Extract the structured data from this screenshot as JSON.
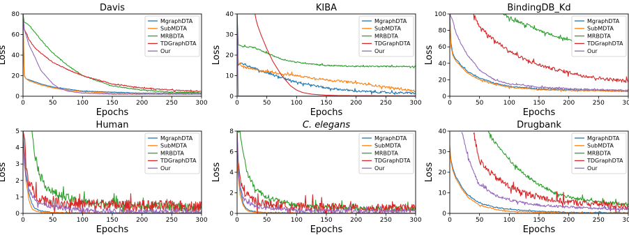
{
  "chart_data": [
    {
      "type": "line",
      "title": "Davis",
      "xlabel": "Epochs",
      "ylabel": "Loss",
      "xlim": [
        0,
        300
      ],
      "ylim": [
        0,
        80
      ],
      "xticks": [
        0,
        50,
        100,
        150,
        200,
        250,
        300
      ],
      "yticks": [
        0,
        20,
        40,
        60,
        80
      ],
      "legend_position": "top-right",
      "series": [
        {
          "name": "MgraphDTA",
          "x": [
            0,
            2,
            5,
            10,
            20,
            30,
            50,
            75,
            100,
            150,
            200,
            250,
            300
          ],
          "values": [
            80,
            20,
            17,
            16,
            14,
            12,
            9,
            7,
            5,
            4,
            3,
            3,
            3
          ],
          "noise": 0.2
        },
        {
          "name": "SubMDTA",
          "x": [
            0,
            2,
            5,
            10,
            20,
            30,
            50,
            75,
            100,
            150,
            200,
            250,
            300
          ],
          "values": [
            80,
            20,
            17,
            15,
            13,
            11,
            8,
            6,
            4.5,
            3,
            2,
            2,
            2
          ],
          "noise": 0.2
        },
        {
          "name": "MRBDTA",
          "x": [
            0,
            2,
            5,
            10,
            20,
            30,
            50,
            75,
            100,
            150,
            200,
            250,
            300
          ],
          "values": [
            80,
            72,
            71,
            69,
            62,
            55,
            42,
            30,
            20,
            10,
            6,
            4,
            3.5
          ],
          "noise": 0.4
        },
        {
          "name": "TDGraphDTA",
          "x": [
            0,
            2,
            5,
            10,
            20,
            30,
            50,
            75,
            100,
            150,
            200,
            250,
            300
          ],
          "values": [
            80,
            65,
            62,
            55,
            47,
            42,
            33,
            26,
            20,
            12,
            8,
            6,
            4.5
          ],
          "noise": 0.4
        },
        {
          "name": "Our",
          "x": [
            0,
            2,
            5,
            10,
            20,
            30,
            50,
            60,
            75,
            100,
            150,
            200,
            300
          ],
          "values": [
            80,
            65,
            60,
            50,
            38,
            25,
            12,
            8,
            5,
            3,
            2,
            2,
            2
          ],
          "noise": 0.2
        }
      ]
    },
    {
      "type": "line",
      "title": "KIBA",
      "xlabel": "Epochs",
      "ylabel": "Loss",
      "xlim": [
        0,
        300
      ],
      "ylim": [
        0,
        40
      ],
      "xticks": [
        0,
        50,
        100,
        150,
        200,
        250,
        300
      ],
      "yticks": [
        0,
        10,
        20,
        30,
        40
      ],
      "legend_position": "top-right",
      "series": [
        {
          "name": "MgraphDTA",
          "x": [
            0,
            2,
            5,
            10,
            20,
            30,
            50,
            75,
            100,
            150,
            200,
            250,
            300
          ],
          "values": [
            40,
            15,
            16,
            15.5,
            14.5,
            13.5,
            11.5,
            9,
            7,
            4,
            2.5,
            1.8,
            1.5
          ],
          "noise": 0.5
        },
        {
          "name": "SubMDTA",
          "x": [
            0,
            2,
            5,
            10,
            20,
            30,
            50,
            75,
            100,
            150,
            200,
            250,
            300
          ],
          "values": [
            40,
            16,
            15,
            14.5,
            13.5,
            13,
            12,
            11,
            10,
            8,
            6.5,
            4.5,
            2.5
          ],
          "noise": 0.5
        },
        {
          "name": "MRBDTA",
          "x": [
            0,
            2,
            5,
            10,
            20,
            30,
            50,
            75,
            100,
            150,
            200,
            250,
            300
          ],
          "values": [
            40,
            25,
            24.5,
            24,
            24,
            23.5,
            21,
            18,
            16.5,
            15,
            14.5,
            14.5,
            14.5
          ],
          "noise": 0.3
        },
        {
          "name": "TDGraphDTA",
          "x": [
            30,
            32,
            35,
            40,
            50,
            60,
            75,
            90,
            100,
            110,
            125,
            150,
            175,
            300
          ],
          "values": [
            40,
            37,
            34,
            30,
            23,
            17,
            10,
            5,
            3,
            1.8,
            1,
            0.5,
            0.3,
            0.2
          ],
          "noise": 0
        },
        {
          "name": "Our",
          "x": [
            0,
            1,
            2,
            300
          ],
          "values": [
            40,
            15,
            0.1,
            0.05
          ],
          "noise": 0
        }
      ]
    },
    {
      "type": "line",
      "title": "BindingDB_Kd",
      "xlabel": "Epochs",
      "ylabel": "Loss",
      "xlim": [
        0,
        300
      ],
      "ylim": [
        0,
        100
      ],
      "xticks": [
        0,
        50,
        100,
        150,
        200,
        250,
        300
      ],
      "yticks": [
        0,
        20,
        40,
        60,
        80,
        100
      ],
      "legend_position": "top-right",
      "series": [
        {
          "name": "MgraphDTA",
          "x": [
            0,
            2,
            5,
            10,
            20,
            30,
            50,
            75,
            100,
            150,
            200,
            250,
            300
          ],
          "values": [
            100,
            65,
            52,
            45,
            37,
            30,
            22,
            16,
            12,
            9,
            8,
            7,
            6
          ],
          "noise": 0.6
        },
        {
          "name": "SubMDTA",
          "x": [
            0,
            2,
            5,
            10,
            20,
            30,
            50,
            75,
            100,
            150,
            200,
            250,
            300
          ],
          "values": [
            100,
            60,
            50,
            43,
            35,
            28,
            20,
            15,
            11,
            8,
            7,
            6.5,
            6
          ],
          "noise": 0.6
        },
        {
          "name": "MRBDTA",
          "x": [
            90,
            100,
            125,
            150,
            175,
            200,
            210
          ],
          "values": [
            100,
            95,
            88,
            80,
            74,
            68,
            66
          ],
          "noise": 1.5
        },
        {
          "name": "TDGraphDTA",
          "x": [
            40,
            45,
            50,
            75,
            100,
            125,
            150,
            175,
            200,
            225,
            250,
            275,
            300
          ],
          "values": [
            100,
            92,
            85,
            68,
            55,
            45,
            38,
            33,
            29,
            25,
            22,
            20,
            18
          ],
          "noise": 2
        },
        {
          "name": "Our",
          "x": [
            0,
            5,
            10,
            20,
            30,
            50,
            75,
            100,
            150,
            200,
            250,
            300
          ],
          "values": [
            100,
            92,
            78,
            62,
            50,
            32,
            20,
            15,
            11,
            9,
            8,
            7
          ],
          "noise": 0.8
        }
      ]
    },
    {
      "type": "line",
      "title": "Human",
      "xlabel": "Epochs",
      "ylabel": "Loss",
      "xlim": [
        0,
        300
      ],
      "ylim": [
        0,
        5
      ],
      "xticks": [
        0,
        50,
        100,
        150,
        200,
        250,
        300
      ],
      "yticks": [
        0,
        1,
        2,
        3,
        4,
        5
      ],
      "legend_position": "top-right",
      "series": [
        {
          "name": "MgraphDTA",
          "x": [
            0,
            2,
            5,
            10,
            15,
            20,
            30,
            40,
            50,
            75,
            100,
            150,
            300
          ],
          "values": [
            5,
            4,
            2.5,
            1.2,
            0.6,
            0.3,
            0.15,
            0.1,
            0.05,
            0.03,
            0.02,
            0.02,
            0.02
          ],
          "noise": 0.03
        },
        {
          "name": "SubMDTA",
          "x": [
            0,
            2,
            5,
            10,
            15,
            20,
            30,
            50,
            100,
            150,
            200,
            300
          ],
          "values": [
            5,
            3.5,
            2,
            0.8,
            0.3,
            0.15,
            0.08,
            0.05,
            0.03,
            0.02,
            0.02,
            0.02
          ],
          "noise": 0.02
        },
        {
          "name": "MRBDTA",
          "x": [
            15,
            18,
            20,
            25,
            30,
            40,
            50,
            75,
            100,
            150,
            200,
            250,
            300
          ],
          "values": [
            5,
            4.2,
            3.6,
            2.8,
            2.2,
            1.6,
            1.3,
            0.9,
            0.7,
            0.55,
            0.45,
            0.4,
            0.35
          ],
          "noise": 0.25
        },
        {
          "name": "TDGraphDTA",
          "x": [
            0,
            3,
            5,
            10,
            20,
            30,
            50,
            75,
            100,
            150,
            200,
            250,
            300
          ],
          "values": [
            5,
            4.5,
            3,
            1.8,
            1.2,
            0.9,
            0.7,
            0.6,
            0.55,
            0.5,
            0.45,
            0.45,
            0.4
          ],
          "noise": 0.35
        },
        {
          "name": "Our",
          "x": [
            0,
            2,
            5,
            10,
            20,
            30,
            50,
            75,
            100,
            150,
            200,
            250,
            300
          ],
          "values": [
            5,
            3,
            2.2,
            1.4,
            0.9,
            0.6,
            0.4,
            0.3,
            0.2,
            0.15,
            0.1,
            0.1,
            0.1
          ],
          "noise": 0.15
        }
      ]
    },
    {
      "type": "line",
      "title": "C. elegans",
      "title_italic": true,
      "xlabel": "Epochs",
      "ylabel": "Loss",
      "xlim": [
        0,
        300
      ],
      "ylim": [
        0,
        8
      ],
      "xticks": [
        0,
        50,
        100,
        150,
        200,
        250,
        300
      ],
      "yticks": [
        0,
        2,
        4,
        6,
        8
      ],
      "legend_position": "top-right",
      "series": [
        {
          "name": "MgraphDTA",
          "x": [
            0,
            2,
            5,
            10,
            15,
            20,
            30,
            50,
            100,
            150,
            200,
            300
          ],
          "values": [
            6,
            4.5,
            2.5,
            1,
            0.5,
            0.3,
            0.15,
            0.08,
            0.05,
            0.04,
            0.03,
            0.03
          ],
          "noise": 0.03
        },
        {
          "name": "SubMDTA",
          "x": [
            0,
            2,
            5,
            10,
            15,
            20,
            30,
            50,
            100,
            150,
            200,
            300
          ],
          "values": [
            5,
            3.5,
            1.8,
            0.8,
            0.4,
            0.2,
            0.1,
            0.06,
            0.04,
            0.03,
            0.03,
            0.03
          ],
          "noise": 0.02
        },
        {
          "name": "MRBDTA",
          "x": [
            0,
            5,
            10,
            15,
            20,
            30,
            40,
            50,
            75,
            100,
            150,
            200,
            250,
            300
          ],
          "values": [
            8,
            7.8,
            6,
            4.5,
            3.5,
            2.5,
            2,
            1.6,
            1.1,
            0.8,
            0.6,
            0.5,
            0.45,
            0.4
          ],
          "noise": 0.25
        },
        {
          "name": "TDGraphDTA",
          "x": [
            0,
            2,
            5,
            10,
            20,
            30,
            50,
            75,
            100,
            150,
            200,
            250,
            300
          ],
          "values": [
            8,
            5,
            3.5,
            2.2,
            1.6,
            1.2,
            0.9,
            0.75,
            0.65,
            0.6,
            0.55,
            0.5,
            0.5
          ],
          "noise": 0.4
        },
        {
          "name": "Our",
          "x": [
            0,
            2,
            5,
            10,
            20,
            30,
            50,
            75,
            100,
            150,
            200,
            250,
            300
          ],
          "values": [
            8,
            4,
            2.5,
            1.5,
            1,
            0.7,
            0.5,
            0.4,
            0.3,
            0.25,
            0.2,
            0.2,
            0.2
          ],
          "noise": 0.2
        }
      ]
    },
    {
      "type": "line",
      "title": "Drugbank",
      "xlabel": "Epochs",
      "ylabel": "Loss",
      "xlim": [
        0,
        300
      ],
      "ylim": [
        0,
        40
      ],
      "xticks": [
        0,
        50,
        100,
        150,
        200,
        250,
        300
      ],
      "yticks": [
        0,
        10,
        20,
        30,
        40
      ],
      "legend_position": "top-right",
      "series": [
        {
          "name": "MgraphDTA",
          "x": [
            0,
            2,
            5,
            10,
            20,
            30,
            50,
            75,
            100,
            150,
            200,
            300
          ],
          "values": [
            30,
            26,
            22,
            18,
            13,
            9,
            5,
            3,
            2,
            1,
            0.5,
            0.3
          ],
          "noise": 0.2
        },
        {
          "name": "SubMDTA",
          "x": [
            0,
            2,
            5,
            10,
            20,
            30,
            50,
            75,
            100,
            150,
            200,
            300
          ],
          "values": [
            33,
            25,
            21,
            17,
            12,
            8,
            4,
            2,
            1,
            0.5,
            0.3,
            0.2
          ],
          "noise": 0.2
        },
        {
          "name": "MRBDTA",
          "x": [
            65,
            75,
            100,
            125,
            150,
            175,
            200,
            225,
            250,
            300
          ],
          "values": [
            40,
            35,
            26,
            19,
            14,
            10,
            8,
            6.5,
            5.5,
            4.5
          ],
          "noise": 0.8
        },
        {
          "name": "TDGraphDTA",
          "x": [
            40,
            45,
            50,
            60,
            75,
            100,
            125,
            150,
            175,
            200,
            250,
            300
          ],
          "values": [
            40,
            32,
            26,
            22,
            18,
            13,
            10,
            8,
            6.5,
            5.5,
            4.5,
            3.5
          ],
          "noise": 1.5
        },
        {
          "name": "Our",
          "x": [
            20,
            25,
            30,
            40,
            50,
            75,
            100,
            125,
            150,
            200,
            250,
            300
          ],
          "values": [
            40,
            34,
            28,
            20,
            14,
            9,
            6.5,
            5,
            4,
            3,
            2.5,
            2
          ],
          "noise": 0.6
        }
      ]
    }
  ],
  "colors": {
    "MgraphDTA": "#1f77b4",
    "SubMDTA": "#ff7f0e",
    "MRBDTA": "#2ca02c",
    "TDGraphDTA": "#d62728",
    "Our": "#9467bd"
  }
}
